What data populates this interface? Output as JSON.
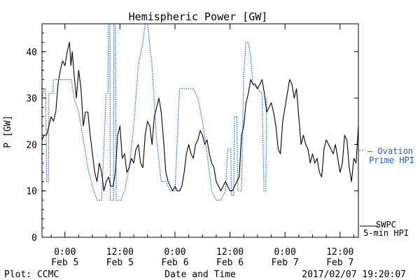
{
  "chart_data": {
    "type": "line",
    "title": "Hemispheric Power [GW]",
    "xlabel": "Date and Time",
    "ylabel": "P [GW]",
    "ylim": [
      0,
      46
    ],
    "xlim_hours": [
      -5,
      64
    ],
    "grid": false,
    "legend_position": "right",
    "y_ticks": [
      0,
      10,
      20,
      30,
      40
    ],
    "x_ticks": [
      {
        "hour": 0,
        "time": "0:00",
        "date": "Feb 5"
      },
      {
        "hour": 12,
        "time": "12:00",
        "date": "Feb 5"
      },
      {
        "hour": 24,
        "time": "0:00",
        "date": "Feb 6"
      },
      {
        "hour": 36,
        "time": "12:00",
        "date": "Feb 6"
      },
      {
        "hour": 48,
        "time": "0:00",
        "date": "Feb 7"
      },
      {
        "hour": 60,
        "time": "12:00",
        "date": "Feb 7"
      }
    ],
    "series": [
      {
        "name": "Ovation Prime HPI",
        "legend_lines": [
          "— Ovation",
          "Prime HPI"
        ],
        "color": "#1f5fd6",
        "style": "dotted",
        "points": [
          [
            -5,
            30
          ],
          [
            -4.5,
            32
          ],
          [
            -4.2,
            32
          ],
          [
            -4,
            12
          ],
          [
            -3.6,
            12
          ],
          [
            -3.5,
            31
          ],
          [
            -2.6,
            31
          ],
          [
            -2.5,
            34
          ],
          [
            -0.5,
            34
          ],
          [
            0,
            34
          ],
          [
            1.4,
            34
          ],
          [
            2,
            30
          ],
          [
            3,
            27
          ],
          [
            4,
            21
          ],
          [
            5,
            15
          ],
          [
            6,
            11
          ],
          [
            7,
            8
          ],
          [
            8,
            8
          ],
          [
            9,
            31
          ],
          [
            9.4,
            31
          ],
          [
            9.5,
            46
          ],
          [
            9.8,
            46
          ],
          [
            9.9,
            8
          ],
          [
            10.6,
            8
          ],
          [
            10.7,
            46
          ],
          [
            11,
            46
          ],
          [
            11.2,
            8
          ],
          [
            12.2,
            8
          ],
          [
            13,
            10
          ],
          [
            14,
            15
          ],
          [
            15,
            24
          ],
          [
            16,
            37
          ],
          [
            17,
            42
          ],
          [
            17.5,
            46
          ],
          [
            18,
            46
          ],
          [
            19,
            37
          ],
          [
            20,
            21
          ],
          [
            21,
            12
          ],
          [
            22,
            12
          ],
          [
            23,
            10
          ],
          [
            24,
            10
          ],
          [
            25,
            32
          ],
          [
            26,
            32
          ],
          [
            28,
            32
          ],
          [
            29,
            30
          ],
          [
            30,
            25
          ],
          [
            31,
            18
          ],
          [
            32,
            10
          ],
          [
            33,
            8
          ],
          [
            34,
            8
          ],
          [
            35,
            10
          ],
          [
            35.5,
            19
          ],
          [
            36.2,
            19
          ],
          [
            36.3,
            9
          ],
          [
            36.8,
            9
          ],
          [
            37,
            26
          ],
          [
            37.5,
            26
          ],
          [
            37.7,
            10
          ],
          [
            38.5,
            10
          ],
          [
            39,
            35
          ],
          [
            39.5,
            42
          ],
          [
            40,
            42
          ],
          [
            40.5,
            39
          ],
          [
            41,
            33
          ],
          [
            42,
            32
          ],
          [
            43,
            31
          ],
          [
            43.4,
            10
          ],
          [
            43.8,
            10
          ],
          [
            44,
            30
          ]
        ]
      },
      {
        "name": "SWPC 5-min HPI",
        "legend_lines": [
          "SWPC",
          "5-min HPI"
        ],
        "color": "#000000",
        "style": "solid",
        "points": [
          [
            -5,
            21
          ],
          [
            -4.5,
            22
          ],
          [
            -4,
            22
          ],
          [
            -3.5,
            24
          ],
          [
            -3,
            26
          ],
          [
            -2.5,
            25
          ],
          [
            -2,
            27
          ],
          [
            -1.5,
            33
          ],
          [
            -1,
            36
          ],
          [
            -0.5,
            38
          ],
          [
            0,
            37
          ],
          [
            0.5,
            40
          ],
          [
            1,
            42
          ],
          [
            1.3,
            37
          ],
          [
            1.6,
            40
          ],
          [
            2,
            35
          ],
          [
            2.5,
            30
          ],
          [
            3,
            36
          ],
          [
            3.5,
            32
          ],
          [
            4,
            24
          ],
          [
            4.5,
            27
          ],
          [
            5,
            27
          ],
          [
            5.5,
            22
          ],
          [
            6,
            18
          ],
          [
            6.5,
            14
          ],
          [
            7,
            12
          ],
          [
            7.5,
            16
          ],
          [
            8,
            14
          ],
          [
            8.5,
            10
          ],
          [
            9,
            12
          ],
          [
            9.5,
            13
          ],
          [
            10,
            11
          ],
          [
            10.5,
            11
          ],
          [
            11,
            14
          ],
          [
            11.5,
            22
          ],
          [
            12,
            24
          ],
          [
            12.5,
            17
          ],
          [
            13,
            18
          ],
          [
            13.5,
            14
          ],
          [
            14,
            15
          ],
          [
            14.5,
            17
          ],
          [
            15,
            16
          ],
          [
            15.5,
            19
          ],
          [
            16,
            20
          ],
          [
            16.5,
            16
          ],
          [
            17,
            15
          ],
          [
            17.5,
            22
          ],
          [
            18,
            25
          ],
          [
            18.5,
            24
          ],
          [
            19,
            20
          ],
          [
            19.5,
            26
          ],
          [
            20,
            28
          ],
          [
            20.5,
            30
          ],
          [
            21,
            27
          ],
          [
            21.5,
            21
          ],
          [
            22,
            14
          ],
          [
            22.5,
            12
          ],
          [
            23,
            11
          ],
          [
            23.5,
            10
          ],
          [
            24,
            11
          ],
          [
            24.5,
            10
          ],
          [
            25,
            10
          ],
          [
            25.5,
            11
          ],
          [
            26,
            14
          ],
          [
            26.5,
            18
          ],
          [
            27,
            20
          ],
          [
            27.5,
            18
          ],
          [
            28,
            17
          ],
          [
            28.5,
            20
          ],
          [
            29,
            21
          ],
          [
            29.5,
            23
          ],
          [
            30,
            22
          ],
          [
            30.5,
            20
          ],
          [
            31,
            21
          ],
          [
            31.5,
            18
          ],
          [
            32,
            16
          ],
          [
            32.5,
            15
          ],
          [
            33,
            12
          ],
          [
            33.5,
            11
          ],
          [
            34,
            10
          ],
          [
            34.5,
            11
          ],
          [
            35,
            12
          ],
          [
            35.5,
            11
          ],
          [
            36,
            10
          ],
          [
            36.5,
            10
          ],
          [
            37,
            11
          ],
          [
            37.5,
            12
          ],
          [
            38,
            13
          ],
          [
            38.5,
            22
          ],
          [
            39,
            24
          ],
          [
            39.5,
            29
          ],
          [
            40,
            31
          ],
          [
            40.5,
            34
          ],
          [
            41,
            33
          ],
          [
            41.5,
            33
          ],
          [
            42,
            32
          ],
          [
            42.5,
            33
          ],
          [
            43,
            34
          ],
          [
            43.5,
            31
          ],
          [
            44,
            27
          ],
          [
            44.5,
            28
          ],
          [
            45,
            29
          ],
          [
            45.5,
            27
          ],
          [
            46,
            24
          ],
          [
            46.5,
            19
          ],
          [
            47,
            18
          ],
          [
            47.5,
            25
          ],
          [
            48,
            28
          ],
          [
            48.5,
            31
          ],
          [
            49,
            34
          ],
          [
            49.5,
            33
          ],
          [
            50,
            30
          ],
          [
            50.5,
            32
          ],
          [
            51,
            26
          ],
          [
            51.5,
            20
          ],
          [
            52,
            22
          ],
          [
            52.5,
            20
          ],
          [
            53,
            19
          ],
          [
            53.5,
            16
          ],
          [
            54,
            18
          ],
          [
            54.5,
            16
          ],
          [
            55,
            17
          ],
          [
            55.5,
            14
          ],
          [
            56,
            13
          ],
          [
            56.5,
            19
          ],
          [
            57,
            21
          ],
          [
            57.5,
            20
          ],
          [
            58,
            19
          ],
          [
            58.5,
            18
          ],
          [
            59,
            20
          ],
          [
            59.5,
            17
          ],
          [
            60,
            14
          ],
          [
            60.5,
            16
          ],
          [
            61,
            22
          ],
          [
            61.5,
            21
          ],
          [
            62,
            15
          ],
          [
            62.5,
            12
          ],
          [
            63,
            17
          ],
          [
            63.5,
            16
          ],
          [
            64,
            24
          ]
        ]
      }
    ]
  },
  "footer": {
    "source": "Plot: CCMC",
    "timestamp": "2017/02/07 19:20:07"
  }
}
